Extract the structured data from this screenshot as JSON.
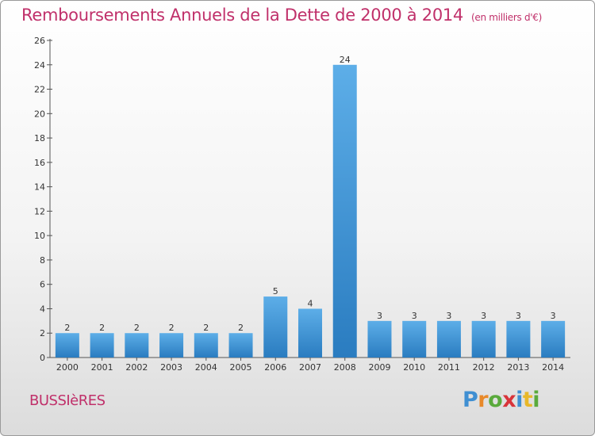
{
  "title": "Remboursements Annuels de la Dette de 2000 à 2014",
  "unit": "(en milliers d'€)",
  "commune": "BUSSIèRES",
  "brand": {
    "letters": [
      {
        "ch": "P",
        "color": "#3f8fd2"
      },
      {
        "ch": "r",
        "color": "#e8892a"
      },
      {
        "ch": "o",
        "color": "#5aaa3c"
      },
      {
        "ch": "x",
        "color": "#d8343a"
      },
      {
        "ch": "i",
        "color": "#3f8fd2"
      },
      {
        "ch": "t",
        "color": "#e8b82a"
      },
      {
        "ch": "i",
        "color": "#5aaa3c"
      }
    ]
  },
  "colors": {
    "title": "#c0306a",
    "bar_top": "#5daee8",
    "bar_bottom": "#2a7cc0"
  },
  "chart_data": {
    "type": "bar",
    "categories": [
      "2000",
      "2001",
      "2002",
      "2003",
      "2004",
      "2005",
      "2006",
      "2007",
      "2008",
      "2009",
      "2010",
      "2011",
      "2012",
      "2013",
      "2014"
    ],
    "values": [
      2,
      2,
      2,
      2,
      2,
      2,
      5,
      4,
      24,
      3,
      3,
      3,
      3,
      3,
      3
    ],
    "data_labels": [
      "2",
      "2",
      "2",
      "2",
      "2",
      "2",
      "5",
      "4",
      "24",
      "3",
      "3",
      "3",
      "3",
      "3",
      "3"
    ],
    "ylim": [
      0,
      26
    ],
    "yticks": [
      0,
      2,
      4,
      6,
      8,
      10,
      12,
      14,
      16,
      18,
      20,
      22,
      24,
      26
    ],
    "grid": false,
    "legend": "none"
  }
}
